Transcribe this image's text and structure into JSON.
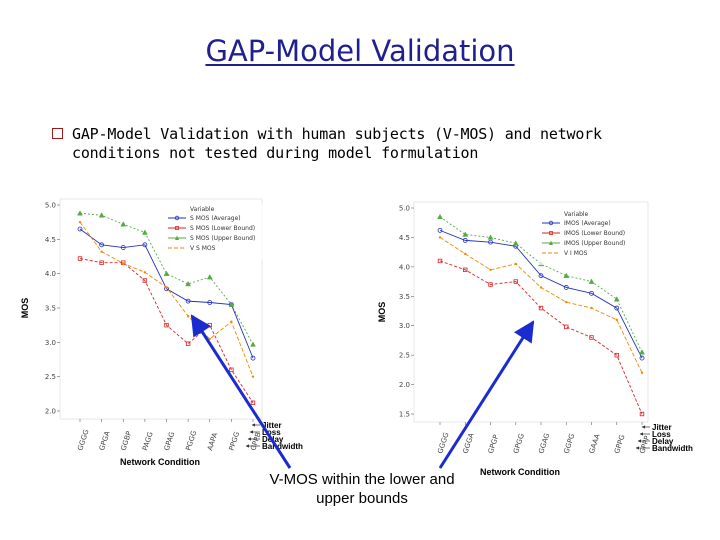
{
  "slide": {
    "title": "GAP-Model Validation",
    "bullet": "GAP-Model Validation with human subjects (V-MOS) and network conditions not tested during model formulation",
    "annotation": "V-MOS within the lower and upper bounds"
  },
  "chart_data": [
    {
      "type": "line",
      "ylabel": "MOS",
      "xlabel": "Network Condition",
      "ylim": [
        2.0,
        5.0
      ],
      "yticks": [
        "2.0",
        "2.5",
        "3.0",
        "3.5",
        "4.0",
        "4.5",
        "5.0"
      ],
      "categories": [
        "GGGG",
        "GPGA",
        "GGBP",
        "PAGG",
        "GPAG",
        "PGGG",
        "AAPA",
        "PPGG",
        "GPPB"
      ],
      "legend_title": "Variable",
      "network_labels": [
        "Jitter",
        "Loss",
        "Delay",
        "Bandwidth"
      ],
      "series": [
        {
          "name": "S MOS (Average)",
          "color": "#2233bb",
          "marker": "circle",
          "values": [
            4.65,
            4.42,
            4.38,
            4.42,
            3.78,
            3.6,
            3.58,
            3.55,
            2.77
          ]
        },
        {
          "name": "S MOS (Lower Bound)",
          "color": "#dd2222",
          "marker": "square",
          "values": [
            4.22,
            4.16,
            4.16,
            3.9,
            3.25,
            2.98,
            3.25,
            2.6,
            2.12
          ]
        },
        {
          "name": "S MOS (Upper Bound)",
          "color": "#55aa44",
          "marker": "triangle",
          "values": [
            4.88,
            4.85,
            4.72,
            4.6,
            4.0,
            3.85,
            3.95,
            3.55,
            2.97
          ]
        },
        {
          "name": "V S MOS",
          "color": "#ee8800",
          "marker": "none",
          "values": [
            4.75,
            4.32,
            4.15,
            4.02,
            3.8,
            3.38,
            3.05,
            3.3,
            2.5
          ]
        }
      ]
    },
    {
      "type": "line",
      "ylabel": "MOS",
      "xlabel": "Network Condition",
      "ylim": [
        1.5,
        5.0
      ],
      "yticks": [
        "1.5",
        "2.0",
        "2.5",
        "3.0",
        "3.5",
        "4.0",
        "4.5",
        "5.0"
      ],
      "categories": [
        "GGGG",
        "GGGA",
        "GPGP",
        "GPGG",
        "GGAG",
        "GGPG",
        "GAAA",
        "GPPG",
        "GPPP"
      ],
      "legend_title": "Variable",
      "network_labels": [
        "Jitter",
        "Loss",
        "Delay",
        "Bandwidth"
      ],
      "series": [
        {
          "name": "IMOS (Average)",
          "color": "#2233bb",
          "marker": "circle",
          "values": [
            4.62,
            4.45,
            4.42,
            4.35,
            3.85,
            3.65,
            3.55,
            3.3,
            2.45
          ]
        },
        {
          "name": "IMOS (Lower Bound)",
          "color": "#dd2222",
          "marker": "square",
          "values": [
            4.1,
            3.95,
            3.7,
            3.75,
            3.3,
            2.98,
            2.8,
            2.5,
            1.5
          ]
        },
        {
          "name": "IMOS (Upper Bound)",
          "color": "#55aa44",
          "marker": "triangle",
          "values": [
            4.85,
            4.55,
            4.5,
            4.4,
            4.05,
            3.85,
            3.75,
            3.45,
            2.55
          ]
        },
        {
          "name": "V I MOS",
          "color": "#ee8800",
          "marker": "none",
          "values": [
            4.5,
            4.22,
            3.95,
            4.05,
            3.65,
            3.4,
            3.3,
            3.1,
            2.2
          ]
        }
      ]
    }
  ]
}
